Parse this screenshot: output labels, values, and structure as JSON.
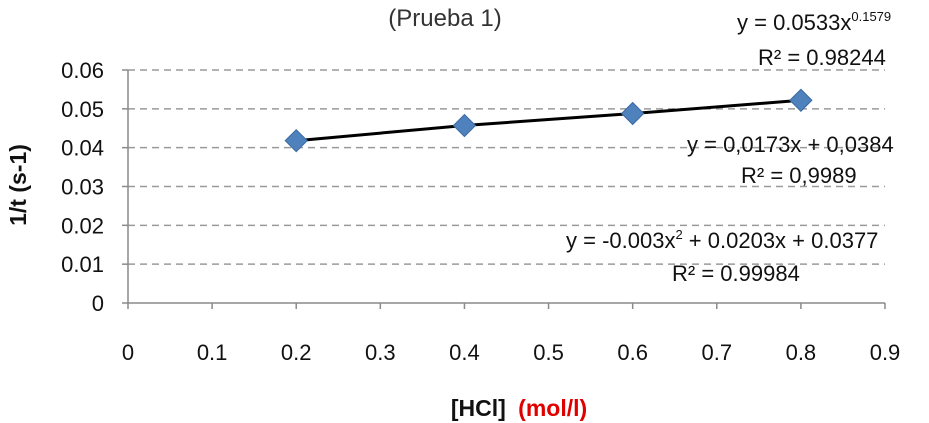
{
  "chart_data": {
    "type": "scatter",
    "title": "(Prueba 1)",
    "xlabel": "[HCl]",
    "xlabel_unit": "(mol/l)",
    "ylabel": "1/t (s-1)",
    "xlim": [
      0,
      0.9
    ],
    "ylim": [
      0,
      0.06
    ],
    "x_ticks": [
      "0",
      "0.1",
      "0.2",
      "0.3",
      "0.4",
      "0.5",
      "0.6",
      "0.7",
      "0.8",
      "0.9"
    ],
    "y_ticks": [
      "0",
      "0.01",
      "0.02",
      "0.03",
      "0.04",
      "0.05",
      "0.06"
    ],
    "grid": "horizontal-dashed",
    "series": [
      {
        "x": [
          0.2,
          0.4,
          0.6,
          0.8
        ],
        "y": [
          0.0418,
          0.0457,
          0.0488,
          0.0522
        ],
        "color": "#4f81bd",
        "marker": "diamond"
      }
    ],
    "trendline_color": "#000000",
    "annotations": [
      {
        "id": "power",
        "equation_base": "y = 0.0533x",
        "equation_exponent": "0.1579",
        "r2": "R² = 0.98244"
      },
      {
        "id": "linear",
        "equation": "y = 0,0173x + 0,0384",
        "r2": "R² = 0,9989"
      },
      {
        "id": "poly",
        "equation_part1": "y = -0.003x",
        "equation_sup": "2",
        "equation_part2": " + 0.0203x + 0.0377",
        "r2": "R² = 0.99984"
      }
    ]
  }
}
